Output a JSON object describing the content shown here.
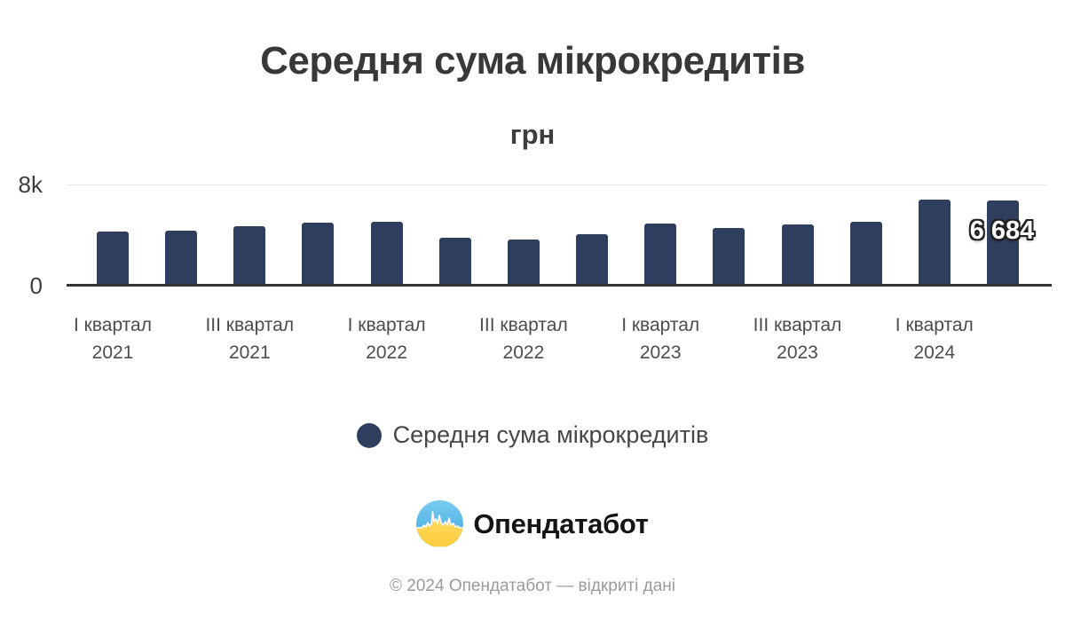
{
  "header": {
    "title": "Середня сума мікрокредитів",
    "subtitle": "грн"
  },
  "chart_data": {
    "type": "bar",
    "series_name": "Середня сума мікрокредитів",
    "values": [
      4190,
      4310,
      4670,
      4960,
      5020,
      3730,
      3580,
      4030,
      4890,
      4510,
      4820,
      5020,
      6780,
      6684
    ],
    "xticks": [
      {
        "line1": "І квартал",
        "line2": "2021"
      },
      {
        "line1": "ІІІ квартал",
        "line2": "2021"
      },
      {
        "line1": "І квартал",
        "line2": "2022"
      },
      {
        "line1": "ІІІ квартал",
        "line2": "2022"
      },
      {
        "line1": "І квартал",
        "line2": "2023"
      },
      {
        "line1": "ІІІ квартал",
        "line2": "2023"
      },
      {
        "line1": "І квартал",
        "line2": "2024"
      }
    ],
    "tick_positions": [
      0,
      2,
      4,
      6,
      8,
      10,
      12
    ],
    "ylim": [
      0,
      8000
    ],
    "ytick_labels": [
      "0",
      "8k"
    ],
    "bar_color": "#2d3e5e",
    "last_value_label": "6 684",
    "grid": "single top line",
    "legend_position": "bottom-center"
  },
  "legend": {
    "label": "Середня сума мікрокредитів",
    "marker_color": "#2d3e5e"
  },
  "branding": {
    "logo_text": "Опендатабот",
    "logo_icon": "opendatabot-pulse-icon",
    "logo_blue": "#4fb4e8",
    "logo_yellow": "#ffd94e"
  },
  "footer": {
    "copyright": "© 2024 Опендатабот — відкриті дані"
  }
}
